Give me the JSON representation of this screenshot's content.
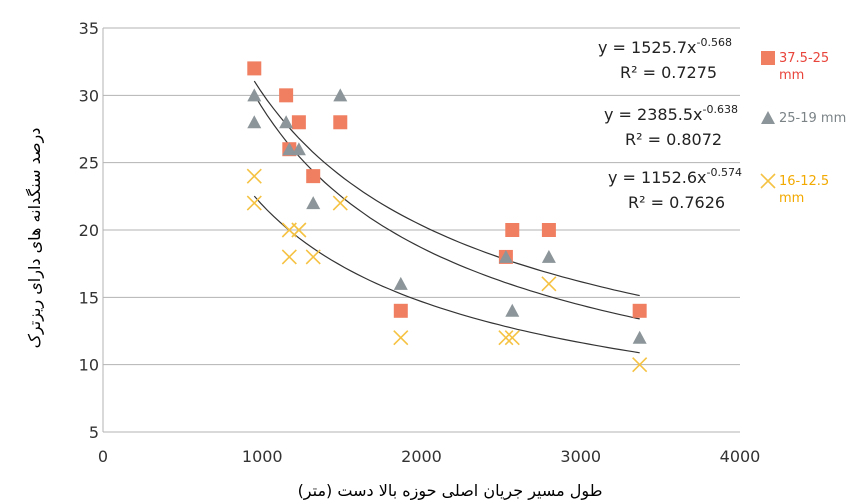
{
  "chart_data": {
    "type": "scatter",
    "xlabel": "طول مسیر جریان اصلی حوزه بالا دست (متر)",
    "ylabel": "درصد سنگدانه های دارای ریزترک",
    "xlim": [
      0,
      4000
    ],
    "ylim": [
      5,
      35
    ],
    "x_ticks": [
      "0",
      "1000",
      "2000",
      "3000",
      "4000"
    ],
    "y_ticks": [
      "5",
      "10",
      "15",
      "20",
      "25",
      "30",
      "35"
    ],
    "grid": "horizontal",
    "legend_position": "right",
    "series": [
      {
        "name_line1": "37.5-25",
        "name_line2": "mm",
        "marker": "square",
        "color": "#f07f62",
        "label_color": "#e8453c",
        "fit": {
          "a": 1525.7,
          "b": -0.568,
          "r2": "0.7275",
          "eq_prefix": "y = 1525.7x",
          "eq_exp": "-0.568",
          "r2_text": "R² = 0.7275"
        },
        "points": [
          [
            950,
            32
          ],
          [
            1150,
            30
          ],
          [
            1170,
            26
          ],
          [
            1230,
            28
          ],
          [
            1320,
            24
          ],
          [
            1490,
            28
          ],
          [
            1870,
            14
          ],
          [
            2530,
            18
          ],
          [
            2570,
            20
          ],
          [
            2800,
            20
          ],
          [
            3370,
            14
          ]
        ]
      },
      {
        "name_line1": "25-19 mm",
        "name_line2": "",
        "marker": "triangle",
        "color": "#8c9599",
        "label_color": "#7b8387",
        "fit": {
          "a": 2385.5,
          "b": -0.638,
          "r2": "0.8072",
          "eq_prefix": "y = 2385.5x",
          "eq_exp": "-0.638",
          "r2_text": "R² = 0.8072"
        },
        "points": [
          [
            950,
            30
          ],
          [
            950,
            28
          ],
          [
            1150,
            28
          ],
          [
            1170,
            26
          ],
          [
            1230,
            26
          ],
          [
            1320,
            22
          ],
          [
            1490,
            30
          ],
          [
            1870,
            16
          ],
          [
            2530,
            18
          ],
          [
            2570,
            14
          ],
          [
            2800,
            18
          ],
          [
            3370,
            12
          ]
        ]
      },
      {
        "name_line1": "16-12.5",
        "name_line2": "mm",
        "marker": "x",
        "color": "#f5c242",
        "label_color": "#f2a900",
        "fit": {
          "a": 1152.6,
          "b": -0.574,
          "r2": "0.7626",
          "eq_prefix": "y = 1152.6x",
          "eq_exp": "-0.574",
          "r2_text": "R² = 0.7626"
        },
        "points": [
          [
            950,
            24
          ],
          [
            950,
            22
          ],
          [
            1170,
            20
          ],
          [
            1170,
            18
          ],
          [
            1230,
            20
          ],
          [
            1320,
            18
          ],
          [
            1490,
            22
          ],
          [
            1870,
            12
          ],
          [
            2530,
            12
          ],
          [
            2570,
            12
          ],
          [
            2800,
            16
          ],
          [
            3370,
            10
          ]
        ]
      }
    ]
  }
}
